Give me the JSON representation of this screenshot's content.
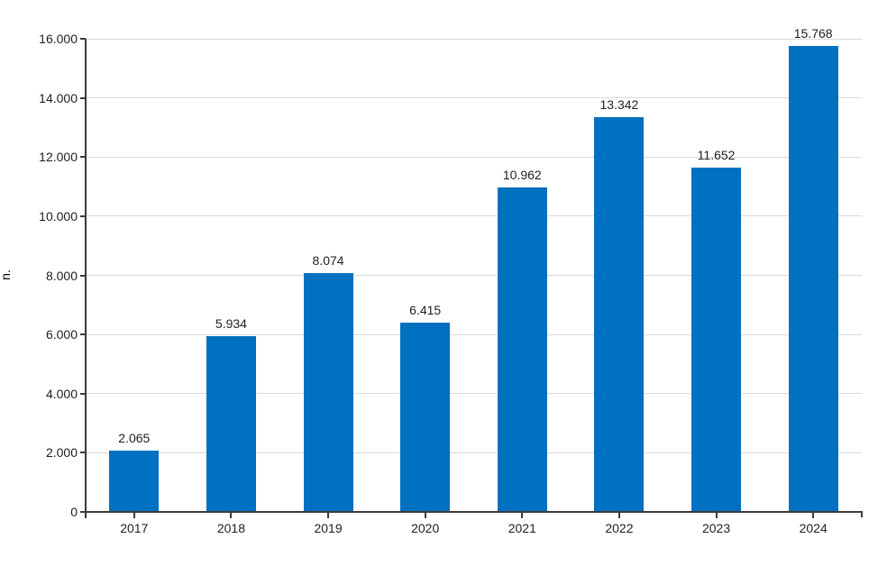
{
  "chart_data": {
    "type": "bar",
    "title": "",
    "xlabel": "",
    "ylabel": "n.",
    "categories": [
      "2017",
      "2018",
      "2019",
      "2020",
      "2021",
      "2022",
      "2023",
      "2024"
    ],
    "values": [
      2065,
      5934,
      8074,
      6415,
      10962,
      13342,
      11652,
      15768
    ],
    "value_labels": [
      "2.065",
      "5.934",
      "8.074",
      "6.415",
      "10.962",
      "13.342",
      "11.652",
      "15.768"
    ],
    "ylim": [
      0,
      16000
    ],
    "yticks": [
      0,
      2000,
      4000,
      6000,
      8000,
      10000,
      12000,
      14000,
      16000
    ],
    "ytick_labels": [
      "0",
      "2.000",
      "4.000",
      "6.000",
      "8.000",
      "10.000",
      "12.000",
      "14.000",
      "16.000"
    ],
    "grid": true,
    "legend": "none"
  },
  "colors": {
    "bar": "#0070C0",
    "gridline": "#D9D9D9",
    "axis": "#3B3B3B",
    "text": "#1F1F1F",
    "background": "#FFFFFF"
  }
}
